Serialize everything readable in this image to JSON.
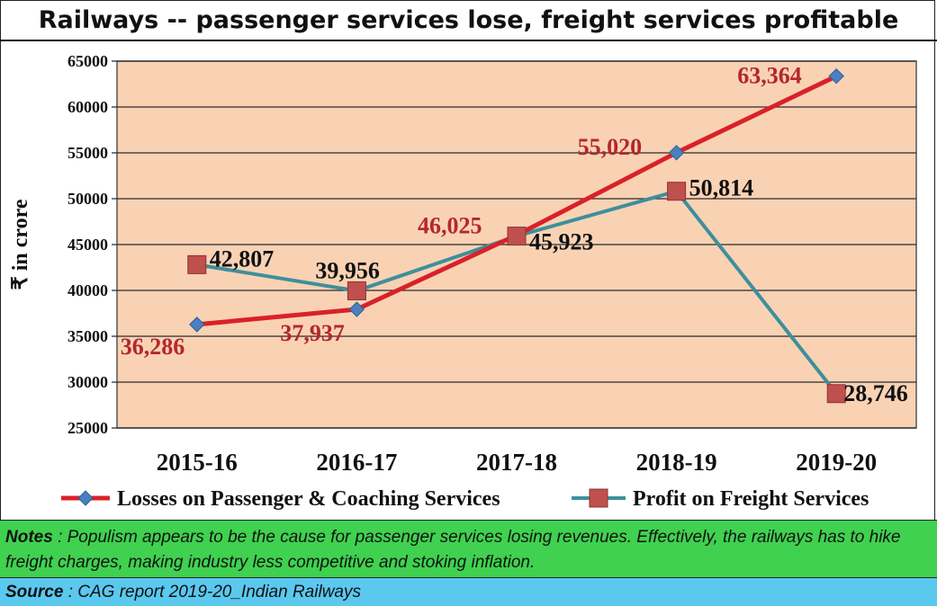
{
  "title": "Railways -- passenger services lose, freight services profitable",
  "chart_data": {
    "type": "line",
    "categories": [
      "2015-16",
      "2016-17",
      "2017-18",
      "2018-19",
      "2019-20"
    ],
    "ylabel": "₹ in crore",
    "xlabel": "",
    "ylim": [
      25000,
      65000
    ],
    "yticks": [
      25000,
      30000,
      35000,
      40000,
      45000,
      50000,
      55000,
      60000,
      65000
    ],
    "grid": true,
    "legend": "bottom",
    "series": [
      {
        "name": "Losses on Passenger & Coaching Services",
        "values": [
          36286,
          37937,
          46025,
          55020,
          63364
        ],
        "labels": [
          "36,286",
          "37,937",
          "46,025",
          "55,020",
          "63,364"
        ],
        "line_color": "#d92128",
        "marker_color": "#4a7fc0",
        "label_color": "#b3272d",
        "marker": "diamond"
      },
      {
        "name": "Profit on Freight Services",
        "values": [
          42807,
          39956,
          45923,
          50814,
          28746
        ],
        "labels": [
          "42,807",
          "39,956",
          "45,923",
          "50,814",
          "28,746"
        ],
        "line_color": "#3e8f9c",
        "marker_color": "#c0504d",
        "label_color": "#111111",
        "marker": "square"
      }
    ],
    "plot_background": "#f9d2b4"
  },
  "notes": {
    "label": "Notes",
    "text": " : Populism appears to be the cause for passenger services losing revenues.  Effectively, the railways has to hike freight charges, making industry less competitive and stoking inflation."
  },
  "source": {
    "label": "Source",
    "text": " : CAG report 2019-20_Indian Railways"
  }
}
